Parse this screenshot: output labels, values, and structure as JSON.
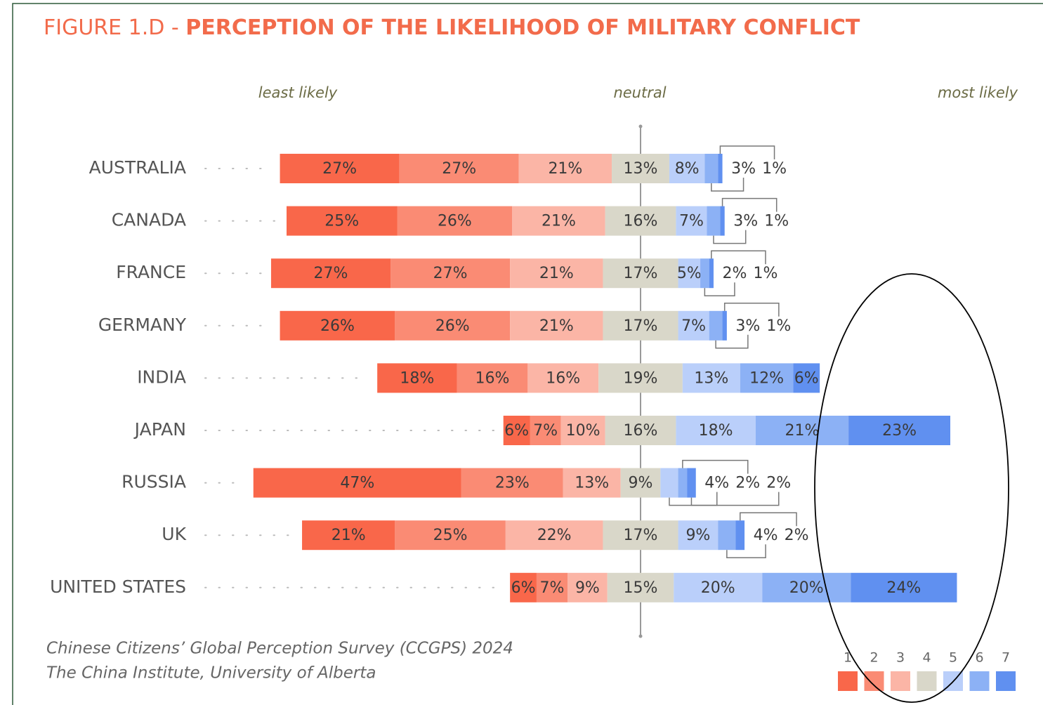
{
  "chart_data": {
    "type": "diverging_stacked_bar",
    "figure_label": "FIGURE 1.D -",
    "title": "PERCEPTION OF THE LIKELIHOOD OF MILITARY CONFLICT",
    "scale_labels": [
      "least likely",
      "neutral",
      "most likely"
    ],
    "source": [
      "Chinese Citizens’ Global Perception Survey (CCGPS) 2024",
      "The China Institute, University of Alberta"
    ],
    "categories": [
      "AUSTRALIA",
      "CANADA",
      "FRANCE",
      "GERMANY",
      "INDIA",
      "JAPAN",
      "RUSSIA",
      "UK",
      "UNITED STATES"
    ],
    "series": [
      {
        "name": "1",
        "color": "#f9674a",
        "values": [
          27,
          25,
          27,
          26,
          18,
          6,
          47,
          21,
          6
        ],
        "value_labels": [
          "27%",
          "25%",
          "27%",
          "26%",
          "18%",
          "6%",
          "47%",
          "21%",
          "6%"
        ]
      },
      {
        "name": "2",
        "color": "#fa8b74",
        "values": [
          27,
          26,
          27,
          26,
          16,
          7,
          23,
          25,
          7
        ],
        "value_labels": [
          "27%",
          "26%",
          "27%",
          "26%",
          "16%",
          "7%",
          "23%",
          "25%",
          "7%"
        ]
      },
      {
        "name": "3",
        "color": "#fbb5a6",
        "values": [
          21,
          21,
          21,
          21,
          16,
          10,
          13,
          22,
          9
        ],
        "value_labels": [
          "21%",
          "21%",
          "21%",
          "21%",
          "16%",
          "10%",
          "13%",
          "22%",
          "9%"
        ]
      },
      {
        "name": "4",
        "color": "#d9d7c9",
        "values": [
          13,
          16,
          17,
          17,
          19,
          16,
          9,
          17,
          15
        ],
        "value_labels": [
          "13%",
          "16%",
          "17%",
          "17%",
          "19%",
          "16%",
          "9%",
          "17%",
          "15%"
        ]
      },
      {
        "name": "5",
        "color": "#bacffa",
        "values": [
          8,
          7,
          5,
          7,
          13,
          18,
          4,
          9,
          20
        ],
        "value_labels": [
          "8%",
          "7%",
          "5%",
          "7%",
          "13%",
          "18%",
          "4%",
          "9%",
          "20%"
        ]
      },
      {
        "name": "6",
        "color": "#8cb1f5",
        "values": [
          3,
          3,
          2,
          3,
          12,
          21,
          2,
          4,
          20
        ],
        "value_labels": [
          "3%",
          "3%",
          "2%",
          "3%",
          "12%",
          "21%",
          "2%",
          "4%",
          "20%"
        ]
      },
      {
        "name": "7",
        "color": "#6090f0",
        "values": [
          1,
          1,
          1,
          1,
          6,
          23,
          2,
          2,
          24
        ],
        "value_labels": [
          "1%",
          "1%",
          "1%",
          "1%",
          "6%",
          "23%",
          "2%",
          "2%",
          "24%"
        ]
      }
    ]
  }
}
